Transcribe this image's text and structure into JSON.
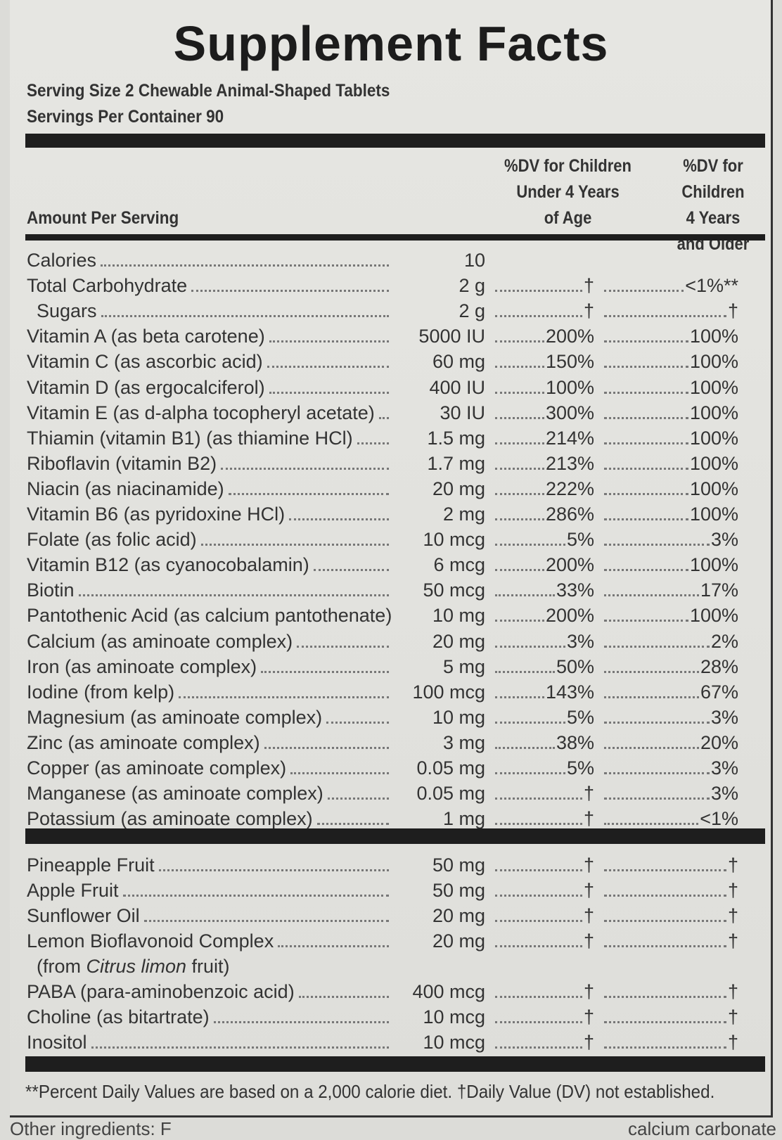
{
  "title": "Supplement Facts",
  "serving_size": "Serving Size 2 Chewable Animal-Shaped Tablets",
  "servings_per_container": "Servings Per Container 90",
  "header": {
    "amount_per_serving": "Amount Per Serving",
    "col_under4": [
      "%DV for Children",
      "Under 4 Years",
      "of Age"
    ],
    "col_4older": [
      "%DV for Children",
      "4 Years",
      "and Older"
    ]
  },
  "nutrients": [
    {
      "name": "Calories",
      "amount": "10",
      "dv_under4": "",
      "dv_older": ""
    },
    {
      "name": "Total Carbohydrate",
      "amount": "2 g",
      "dv_under4": "†",
      "dv_older": "<1%**"
    },
    {
      "name": "Sugars",
      "amount": "2 g",
      "dv_under4": "†",
      "dv_older": "†",
      "indent": true
    },
    {
      "name": "Vitamin A (as beta carotene)",
      "amount": "5000 IU",
      "dv_under4": "200%",
      "dv_older": "100%"
    },
    {
      "name": "Vitamin C (as ascorbic acid)",
      "amount": "60 mg",
      "dv_under4": "150%",
      "dv_older": "100%"
    },
    {
      "name": "Vitamin D (as ergocalciferol)",
      "amount": "400 IU",
      "dv_under4": "100%",
      "dv_older": "100%"
    },
    {
      "name": "Vitamin E (as d-alpha tocopheryl acetate)",
      "amount": "30 IU",
      "dv_under4": "300%",
      "dv_older": "100%"
    },
    {
      "name": "Thiamin (vitamin B1) (as thiamine HCl)",
      "amount": "1.5 mg",
      "dv_under4": "214%",
      "dv_older": "100%"
    },
    {
      "name": "Riboflavin (vitamin B2)",
      "amount": "1.7 mg",
      "dv_under4": "213%",
      "dv_older": "100%"
    },
    {
      "name": "Niacin (as niacinamide)",
      "amount": "20 mg",
      "dv_under4": "222%",
      "dv_older": "100%"
    },
    {
      "name": "Vitamin B6 (as pyridoxine HCl)",
      "amount": "2 mg",
      "dv_under4": "286%",
      "dv_older": "100%"
    },
    {
      "name": "Folate (as folic acid)",
      "amount": "10 mcg",
      "dv_under4": "5%",
      "dv_older": "3%"
    },
    {
      "name": "Vitamin B12 (as cyanocobalamin)",
      "amount": "6 mcg",
      "dv_under4": "200%",
      "dv_older": "100%"
    },
    {
      "name": "Biotin",
      "amount": "50 mcg",
      "dv_under4": "33%",
      "dv_older": "17%"
    },
    {
      "name": "Pantothenic Acid (as calcium pantothenate)",
      "amount": "10 mg",
      "dv_under4": "200%",
      "dv_older": "100%"
    },
    {
      "name": "Calcium (as aminoate complex)",
      "amount": "20 mg",
      "dv_under4": "3%",
      "dv_older": "2%"
    },
    {
      "name": "Iron (as aminoate complex)",
      "amount": "5 mg",
      "dv_under4": "50%",
      "dv_older": "28%"
    },
    {
      "name": "Iodine (from kelp)",
      "amount": "100 mcg",
      "dv_under4": "143%",
      "dv_older": "67%"
    },
    {
      "name": "Magnesium (as aminoate complex)",
      "amount": "10 mg",
      "dv_under4": "5%",
      "dv_older": "3%"
    },
    {
      "name": "Zinc (as aminoate complex)",
      "amount": "3 mg",
      "dv_under4": "38%",
      "dv_older": "20%"
    },
    {
      "name": "Copper (as aminoate complex)",
      "amount": "0.05 mg",
      "dv_under4": "5%",
      "dv_older": "3%"
    },
    {
      "name": "Manganese (as aminoate complex)",
      "amount": "0.05 mg",
      "dv_under4": "†",
      "dv_older": "3%"
    },
    {
      "name": "Potassium (as aminoate complex)",
      "amount": "1 mg",
      "dv_under4": "†",
      "dv_older": "<1%"
    }
  ],
  "other_nutrients": [
    {
      "name": "Pineapple Fruit",
      "amount": "50 mg",
      "dv_under4": "†",
      "dv_older": "†"
    },
    {
      "name": "Apple Fruit",
      "amount": "50 mg",
      "dv_under4": "†",
      "dv_older": "†"
    },
    {
      "name": "Sunflower Oil",
      "amount": "20 mg",
      "dv_under4": "†",
      "dv_older": "†"
    },
    {
      "name": "Lemon Bioflavonoid Complex",
      "amount": "20 mg",
      "dv_under4": "†",
      "dv_older": "†"
    },
    {
      "name": "PABA (para-aminobenzoic acid)",
      "amount": "400 mcg",
      "dv_under4": "†",
      "dv_older": "†"
    },
    {
      "name": "Choline (as bitartrate)",
      "amount": "10 mcg",
      "dv_under4": "†",
      "dv_older": "†"
    },
    {
      "name": "Inositol",
      "amount": "10 mcg",
      "dv_under4": "†",
      "dv_older": "†"
    }
  ],
  "lemon_source": {
    "prefix": "(from ",
    "species": "Citrus limon",
    "suffix": " fruit)"
  },
  "footnote": "**Percent Daily Values are based on a 2,000 calorie diet. †Daily Value (DV) not established.",
  "other_ingredients": {
    "left": "Other ingredients: F",
    "right": "calcium carbonate"
  }
}
